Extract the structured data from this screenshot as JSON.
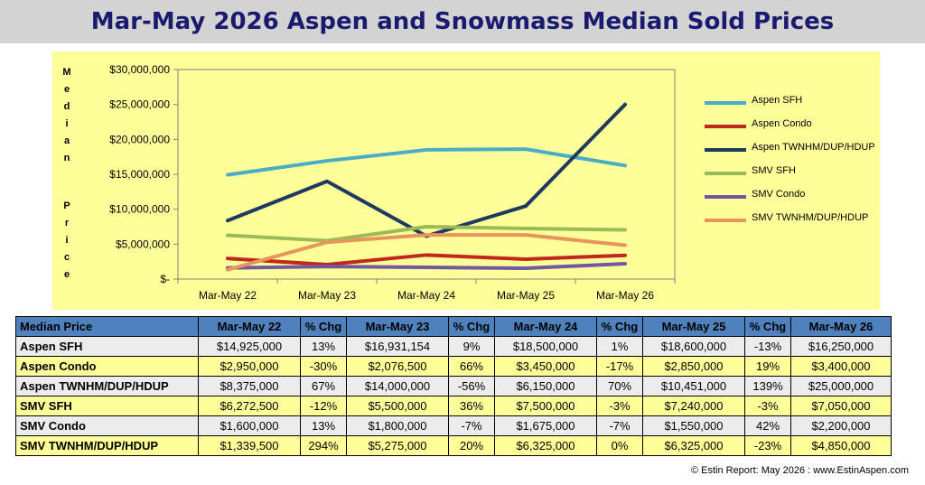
{
  "title": "Mar-May 2026 Aspen and Snowmass Median Sold Prices",
  "chart_data": {
    "type": "line",
    "title": "Mar-May 2026 Aspen and Snowmass Median Sold Prices",
    "ylabel": "Median Price",
    "xlabel": "",
    "categories": [
      "Mar-May 22",
      "Mar-May 23",
      "Mar-May 24",
      "Mar-May 25",
      "Mar-May 26"
    ],
    "ylim": [
      0,
      30000000
    ],
    "yticks": [
      {
        "value": 0,
        "label": "$-"
      },
      {
        "value": 5000000,
        "label": "$5,000,000"
      },
      {
        "value": 10000000,
        "label": "$10,000,000"
      },
      {
        "value": 15000000,
        "label": "$15,000,000"
      },
      {
        "value": 20000000,
        "label": "$20,000,000"
      },
      {
        "value": 25000000,
        "label": "$25,000,000"
      },
      {
        "value": 30000000,
        "label": "$30,000,000"
      }
    ],
    "legend_position": "right",
    "series": [
      {
        "name": "Aspen SFH",
        "color": "#4bacc6",
        "values": [
          14925000,
          16931154,
          18500000,
          18600000,
          16250000
        ]
      },
      {
        "name": "Aspen Condo",
        "color": "#c0281b",
        "values": [
          2950000,
          2076500,
          3450000,
          2850000,
          3400000
        ]
      },
      {
        "name": "Aspen TWNHM/DUP/HDUP",
        "color": "#1f3a5f",
        "values": [
          8375000,
          14000000,
          6150000,
          10451000,
          25000000
        ]
      },
      {
        "name": "SMV SFH",
        "color": "#9bbb59",
        "values": [
          6272500,
          5500000,
          7500000,
          7240000,
          7050000
        ]
      },
      {
        "name": "SMV Condo",
        "color": "#7058a3",
        "values": [
          1600000,
          1800000,
          1675000,
          1550000,
          2200000
        ]
      },
      {
        "name": "SMV TWNHM/DUP/HDUP",
        "color": "#e7955d",
        "values": [
          1339500,
          5275000,
          6325000,
          6325000,
          4850000
        ]
      }
    ]
  },
  "ylabel_letters": [
    "M",
    "e",
    "d",
    "i",
    "a",
    "n",
    "P",
    "r",
    "i",
    "c",
    "e"
  ],
  "table": {
    "headers": [
      "Median Price",
      "Mar-May 22",
      "% Chg",
      "Mar-May 23",
      "% Chg",
      "Mar-May 24",
      "% Chg",
      "Mar-May 25",
      "% Chg",
      "Mar-May 26"
    ],
    "rows": [
      {
        "name": "Aspen SFH",
        "cells": [
          "$14,925,000",
          "13%",
          "$16,931,154",
          "9%",
          "$18,500,000",
          "1%",
          "$18,600,000",
          "-13%",
          "$16,250,000"
        ]
      },
      {
        "name": "Aspen Condo",
        "cells": [
          "$2,950,000",
          "-30%",
          "$2,076,500",
          "66%",
          "$3,450,000",
          "-17%",
          "$2,850,000",
          "19%",
          "$3,400,000"
        ]
      },
      {
        "name": "Aspen TWNHM/DUP/HDUP",
        "cells": [
          "$8,375,000",
          "67%",
          "$14,000,000",
          "-56%",
          "$6,150,000",
          "70%",
          "$10,451,000",
          "139%",
          "$25,000,000"
        ]
      },
      {
        "name": "SMV SFH",
        "cells": [
          "$6,272,500",
          "-12%",
          "$5,500,000",
          "36%",
          "$7,500,000",
          "-3%",
          "$7,240,000",
          "-3%",
          "$7,050,000"
        ]
      },
      {
        "name": "SMV Condo",
        "cells": [
          "$1,600,000",
          "13%",
          "$1,800,000",
          "-7%",
          "$1,675,000",
          "-7%",
          "$1,550,000",
          "42%",
          "$2,200,000"
        ]
      },
      {
        "name": "SMV TWNHM/DUP/HDUP",
        "cells": [
          "$1,339,500",
          "294%",
          "$5,275,000",
          "20%",
          "$6,325,000",
          "0%",
          "$6,325,000",
          "-23%",
          "$4,850,000"
        ]
      }
    ]
  },
  "footer": "© Estin Report: May 2026 : www.EstinAspen.com"
}
